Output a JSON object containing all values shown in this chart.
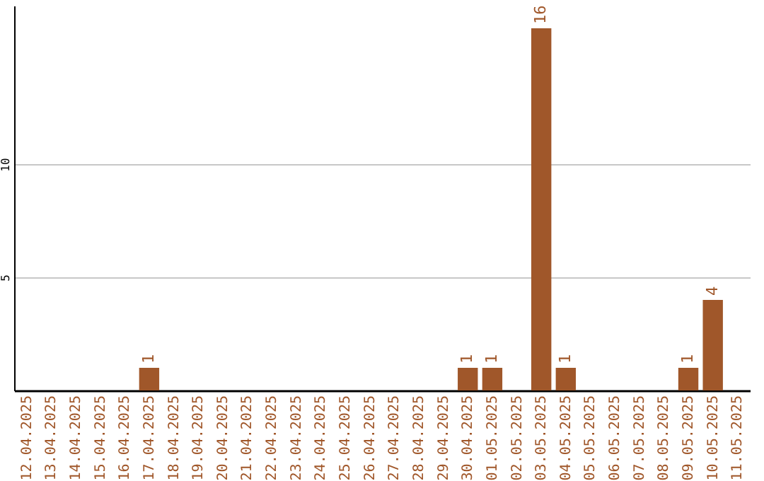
{
  "chart_data": {
    "type": "bar",
    "categories": [
      "12.04.2025",
      "13.04.2025",
      "14.04.2025",
      "15.04.2025",
      "16.04.2025",
      "17.04.2025",
      "18.04.2025",
      "19.04.2025",
      "20.04.2025",
      "21.04.2025",
      "22.04.2025",
      "23.04.2025",
      "24.04.2025",
      "25.04.2025",
      "26.04.2025",
      "27.04.2025",
      "28.04.2025",
      "29.04.2025",
      "30.04.2025",
      "01.05.2025",
      "02.05.2025",
      "03.05.2025",
      "04.05.2025",
      "05.05.2025",
      "06.05.2025",
      "07.05.2025",
      "08.05.2025",
      "09.05.2025",
      "10.05.2025",
      "11.05.2025"
    ],
    "values": [
      0,
      0,
      0,
      0,
      0,
      1,
      0,
      0,
      0,
      0,
      0,
      0,
      0,
      0,
      0,
      0,
      0,
      0,
      1,
      1,
      0,
      16,
      1,
      0,
      0,
      0,
      0,
      1,
      4,
      0
    ],
    "value_labels": [
      null,
      null,
      null,
      null,
      null,
      "1",
      null,
      null,
      null,
      null,
      null,
      null,
      null,
      null,
      null,
      null,
      null,
      null,
      "1",
      "1",
      null,
      "16",
      "1",
      null,
      null,
      null,
      null,
      "1",
      "4",
      null
    ],
    "color": "#a0572a",
    "ylim": [
      0,
      17
    ],
    "yticks": [
      5,
      10
    ],
    "grid": "y"
  }
}
